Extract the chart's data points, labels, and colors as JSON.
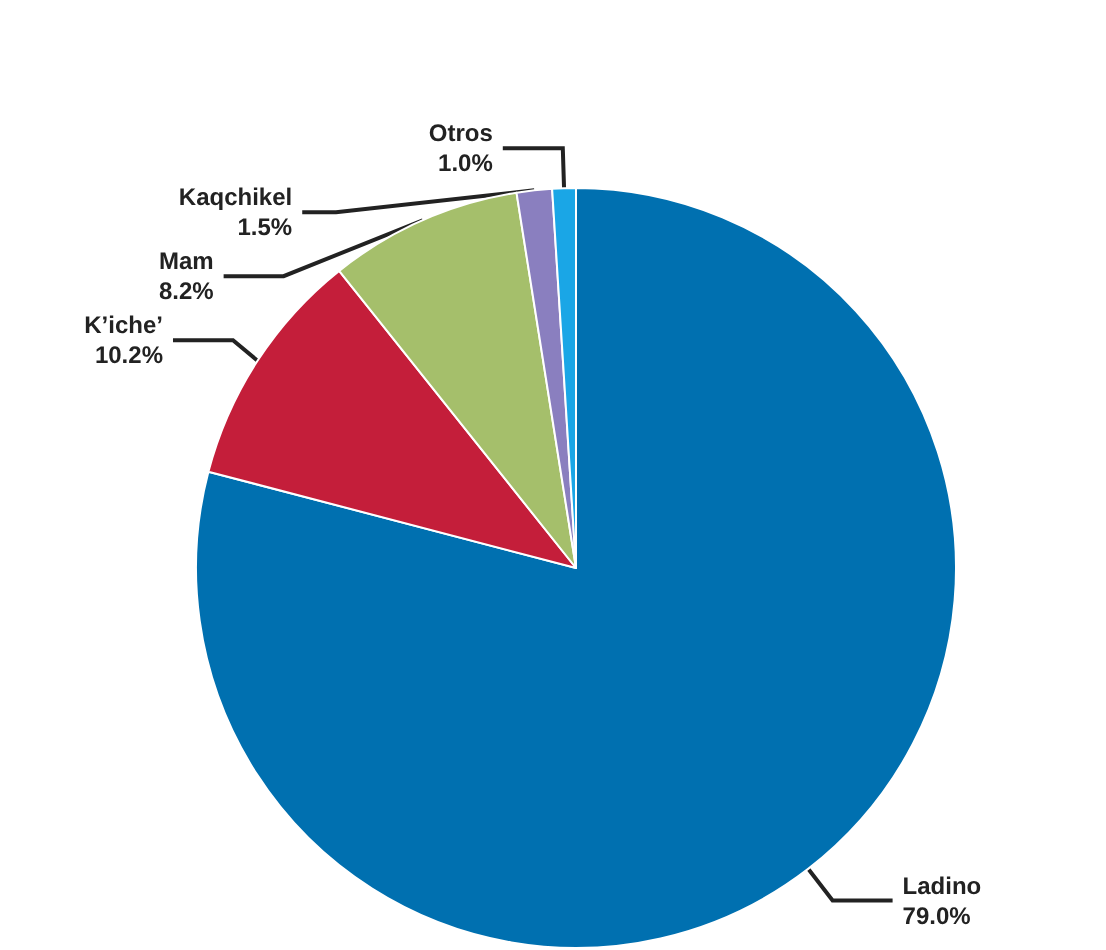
{
  "chart_data": {
    "type": "pie",
    "categories": [
      "Ladino",
      "K’iche’",
      "Mam",
      "Kaqchikel",
      "Otros"
    ],
    "values": [
      79.0,
      10.2,
      8.2,
      1.5,
      1.0
    ],
    "value_labels": [
      "79.0%",
      "10.2%",
      "8.2%",
      "1.5%",
      "1.0%"
    ],
    "colors": [
      "#0070b0",
      "#c41e3a",
      "#a5bf6b",
      "#8a7fbf",
      "#1aa6e6"
    ],
    "legend": false
  }
}
